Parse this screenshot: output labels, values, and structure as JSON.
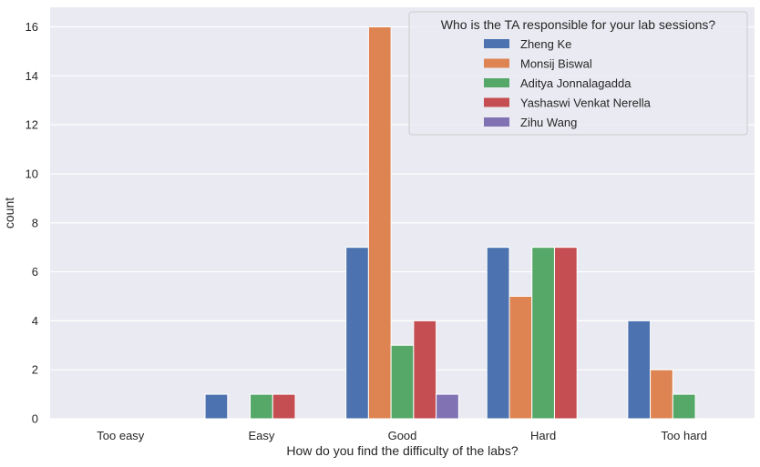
{
  "chart_data": {
    "type": "bar",
    "title": "",
    "xlabel": "How do you find the difficulty of the labs?",
    "ylabel": "count",
    "categories": [
      "Too easy",
      "Easy",
      "Good",
      "Hard",
      "Too hard"
    ],
    "ylim": [
      0,
      16.8
    ],
    "yticks": [
      0,
      2,
      4,
      6,
      8,
      10,
      12,
      14,
      16
    ],
    "grid": true,
    "legend": {
      "title": "Who is the TA responsible for your lab sessions?",
      "placement": "top-right"
    },
    "series": [
      {
        "name": "Zheng Ke",
        "color": "#4c72b0",
        "values": [
          0,
          1,
          7,
          7,
          4
        ]
      },
      {
        "name": "Monsij Biswal",
        "color": "#dd8452",
        "values": [
          0,
          0,
          16,
          5,
          2
        ]
      },
      {
        "name": "Aditya Jonnalagadda",
        "color": "#55a868",
        "values": [
          0,
          1,
          3,
          7,
          1
        ]
      },
      {
        "name": "Yashaswi Venkat Nerella",
        "color": "#c44e52",
        "values": [
          0,
          1,
          4,
          7,
          0
        ]
      },
      {
        "name": "Zihu Wang",
        "color": "#8172b3",
        "values": [
          0,
          0,
          1,
          0,
          0
        ]
      }
    ],
    "colors": {
      "plot_background": "#eaeaf2",
      "grid": "#ffffff"
    }
  }
}
